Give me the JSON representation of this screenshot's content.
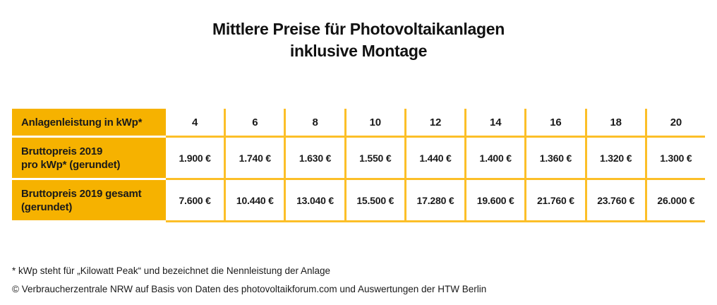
{
  "title": {
    "line1": "Mittlere Preise für Photovoltaikanlagen",
    "line2": "inklusive Montage"
  },
  "colors": {
    "brand_yellow": "#f6b200",
    "grid_yellow": "#fcbf28",
    "text": "#1a1a1a"
  },
  "table": {
    "rows": [
      {
        "label_line1": "Anlagenleistung in kWp*",
        "label_line2": "",
        "cells": [
          "4",
          "6",
          "8",
          "10",
          "12",
          "14",
          "16",
          "18",
          "20"
        ]
      },
      {
        "label_line1": "Bruttopreis 2019",
        "label_line2": "pro kWp* (gerundet)",
        "cells": [
          "1.900 €",
          "1.740 €",
          "1.630 €",
          "1.550 €",
          "1.440 €",
          "1.400 €",
          "1.360 €",
          "1.320 €",
          "1.300 €"
        ]
      },
      {
        "label_line1": "Bruttopreis 2019 gesamt",
        "label_line2": "(gerundet)",
        "cells": [
          "7.600 €",
          "10.440 €",
          "13.040 €",
          "15.500 €",
          "17.280 €",
          "19.600 €",
          "21.760 €",
          "23.760 €",
          "26.000 €"
        ]
      }
    ]
  },
  "footnotes": {
    "line1": "* kWp steht für „Kilowatt Peak“ und bezeichnet die Nennleistung der Anlage",
    "line2": "© Verbraucherzentrale NRW auf Basis von Daten des photovoltaikforum.com und Auswertungen der HTW Berlin"
  },
  "chart_data": {
    "type": "table",
    "title": "Mittlere Preise für Photovoltaikanlagen inklusive Montage",
    "row_labels": [
      "Anlagenleistung in kWp*",
      "Bruttopreis 2019 pro kWp* (gerundet)",
      "Bruttopreis 2019 gesamt (gerundet)"
    ],
    "anlagenleistung_kwp": [
      4,
      6,
      8,
      10,
      12,
      14,
      16,
      18,
      20
    ],
    "bruttopreis_2019_pro_kwp_eur": [
      1900,
      1740,
      1630,
      1550,
      1440,
      1400,
      1360,
      1320,
      1300
    ],
    "bruttopreis_2019_gesamt_eur": [
      7600,
      10440,
      13040,
      15500,
      17280,
      19600,
      21760,
      23760,
      26000
    ],
    "footnotes": [
      "* kWp steht für „Kilowatt Peak“ und bezeichnet die Nennleistung der Anlage",
      "© Verbraucherzentrale NRW auf Basis von Daten des photovoltaikforum.com und Auswertungen der HTW Berlin"
    ]
  }
}
